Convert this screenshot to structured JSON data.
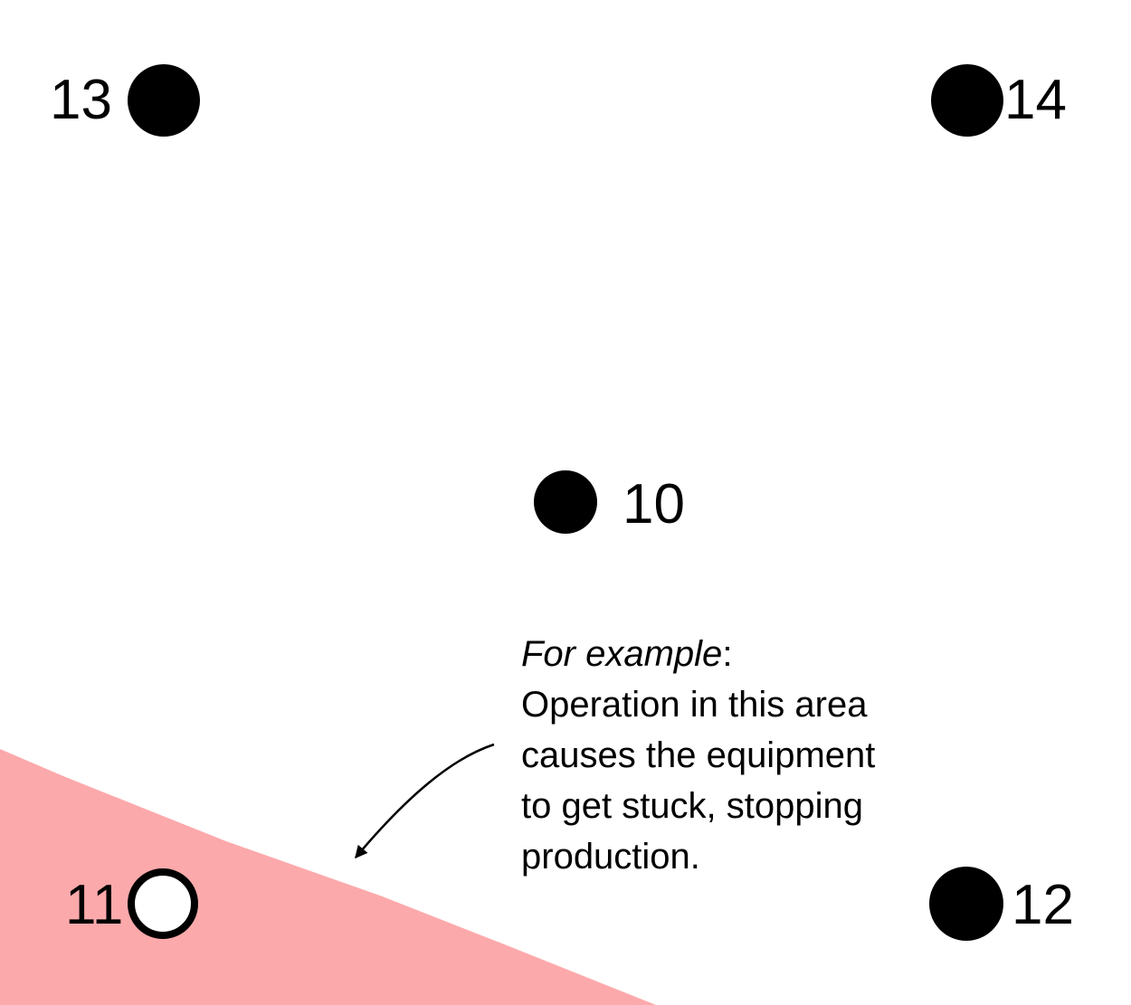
{
  "colors": {
    "risk_zone": "#fca9ab",
    "point_fill": "#000000",
    "open_point_fill": "#ffffff",
    "text": "#000000"
  },
  "points": {
    "p13": {
      "label": "13",
      "state": "filled"
    },
    "p14": {
      "label": "14",
      "state": "filled"
    },
    "p10": {
      "label": "10",
      "state": "filled"
    },
    "p11": {
      "label": "11",
      "state": "open"
    },
    "p12": {
      "label": "12",
      "state": "filled"
    }
  },
  "annotation": {
    "prefix": "For example",
    "suffix": ":",
    "lines": [
      "Operation in this area",
      "causes the equipment",
      "to get stuck, stopping",
      "production."
    ]
  }
}
